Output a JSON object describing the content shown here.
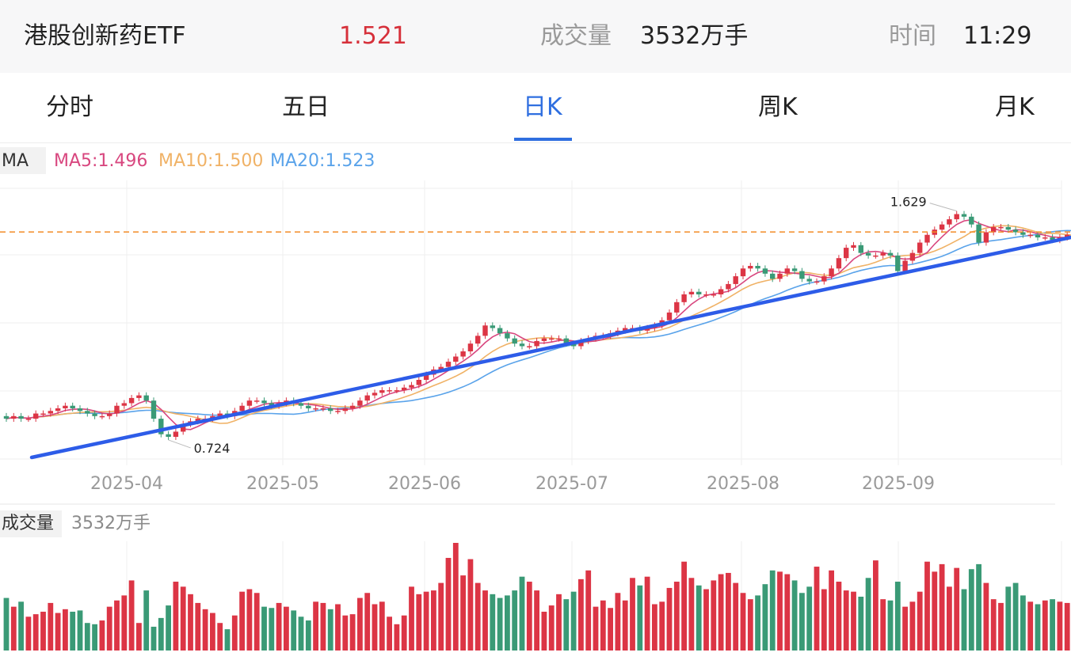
{
  "header": {
    "name": "港股创新药ETF",
    "price": "1.521",
    "volume_label": "成交量",
    "volume": "3532万手",
    "time_label": "时间",
    "time": "11:29"
  },
  "tabs": [
    {
      "label": "分时",
      "active": false
    },
    {
      "label": "五日",
      "active": false
    },
    {
      "label": "日K",
      "active": true
    },
    {
      "label": "周K",
      "active": false
    },
    {
      "label": "月K",
      "active": false
    }
  ],
  "indicators": {
    "label": "MA",
    "ma5": "MA5:1.496",
    "ma10": "MA10:1.500",
    "ma20": "MA20:1.523"
  },
  "volume_panel": {
    "label": "成交量",
    "value": "3532万手"
  },
  "colors": {
    "up": "#dc3545",
    "down": "#3a9a76",
    "ma5": "#d8477f",
    "ma10": "#f0b266",
    "ma20": "#5aa3ea",
    "trendline": "#2d5ce8",
    "price_line": "#f28c28",
    "accent": "#2f6fe0"
  },
  "chart_data": {
    "type": "candlestick",
    "x_labels": [
      "2025-04",
      "2025-05",
      "2025-06",
      "2025-07",
      "2025-08",
      "2025-09"
    ],
    "annotations": {
      "high": "1.629",
      "low": "0.724"
    },
    "current_price": 1.521,
    "ylim": [
      0.62,
      1.72
    ],
    "closes": [
      0.8,
      0.81,
      0.8,
      0.8,
      0.82,
      0.82,
      0.83,
      0.84,
      0.85,
      0.84,
      0.83,
      0.82,
      0.81,
      0.81,
      0.82,
      0.85,
      0.86,
      0.88,
      0.89,
      0.87,
      0.8,
      0.74,
      0.73,
      0.75,
      0.78,
      0.79,
      0.8,
      0.8,
      0.81,
      0.82,
      0.81,
      0.83,
      0.85,
      0.87,
      0.87,
      0.86,
      0.85,
      0.86,
      0.87,
      0.86,
      0.85,
      0.84,
      0.84,
      0.84,
      0.83,
      0.83,
      0.84,
      0.85,
      0.87,
      0.89,
      0.9,
      0.91,
      0.91,
      0.91,
      0.92,
      0.93,
      0.95,
      0.97,
      0.99,
      1.0,
      1.02,
      1.04,
      1.06,
      1.09,
      1.12,
      1.16,
      1.15,
      1.13,
      1.11,
      1.09,
      1.08,
      1.08,
      1.1,
      1.11,
      1.11,
      1.11,
      1.09,
      1.08,
      1.1,
      1.11,
      1.12,
      1.12,
      1.13,
      1.14,
      1.15,
      1.15,
      1.14,
      1.15,
      1.16,
      1.18,
      1.21,
      1.25,
      1.28,
      1.29,
      1.28,
      1.28,
      1.28,
      1.3,
      1.32,
      1.35,
      1.38,
      1.39,
      1.38,
      1.36,
      1.34,
      1.36,
      1.38,
      1.37,
      1.34,
      1.33,
      1.33,
      1.35,
      1.38,
      1.42,
      1.46,
      1.47,
      1.44,
      1.43,
      1.43,
      1.44,
      1.43,
      1.37,
      1.41,
      1.44,
      1.48,
      1.51,
      1.53,
      1.55,
      1.57,
      1.59,
      1.58,
      1.55,
      1.48,
      1.52,
      1.54,
      1.54,
      1.53,
      1.52,
      1.51,
      1.51,
      1.5,
      1.5,
      1.49,
      1.5,
      1.51,
      1.5,
      1.52
    ],
    "opens": [
      0.81,
      0.8,
      0.81,
      0.8,
      0.8,
      0.82,
      0.82,
      0.83,
      0.84,
      0.85,
      0.84,
      0.83,
      0.82,
      0.81,
      0.81,
      0.82,
      0.85,
      0.86,
      0.88,
      0.89,
      0.87,
      0.8,
      0.74,
      0.73,
      0.75,
      0.78,
      0.79,
      0.8,
      0.8,
      0.81,
      0.82,
      0.81,
      0.83,
      0.85,
      0.87,
      0.87,
      0.86,
      0.85,
      0.86,
      0.87,
      0.86,
      0.85,
      0.84,
      0.84,
      0.84,
      0.83,
      0.83,
      0.84,
      0.85,
      0.87,
      0.89,
      0.9,
      0.91,
      0.91,
      0.91,
      0.92,
      0.93,
      0.95,
      0.97,
      0.99,
      1.0,
      1.02,
      1.04,
      1.06,
      1.09,
      1.12,
      1.16,
      1.15,
      1.13,
      1.11,
      1.09,
      1.08,
      1.08,
      1.1,
      1.11,
      1.11,
      1.11,
      1.09,
      1.08,
      1.1,
      1.11,
      1.12,
      1.12,
      1.13,
      1.14,
      1.15,
      1.15,
      1.14,
      1.15,
      1.16,
      1.18,
      1.21,
      1.25,
      1.28,
      1.29,
      1.28,
      1.28,
      1.28,
      1.3,
      1.32,
      1.35,
      1.38,
      1.39,
      1.38,
      1.36,
      1.34,
      1.36,
      1.38,
      1.37,
      1.34,
      1.33,
      1.33,
      1.35,
      1.38,
      1.42,
      1.46,
      1.47,
      1.44,
      1.43,
      1.43,
      1.44,
      1.43,
      1.37,
      1.41,
      1.44,
      1.48,
      1.51,
      1.53,
      1.55,
      1.57,
      1.59,
      1.58,
      1.55,
      1.48,
      1.52,
      1.54,
      1.54,
      1.53,
      1.52,
      1.51,
      1.51,
      1.5,
      1.5,
      1.49,
      1.5,
      1.51,
      1.5
    ],
    "volumes": [
      42,
      35,
      39,
      27,
      29,
      31,
      38,
      30,
      33,
      31,
      32,
      22,
      21,
      24,
      35,
      40,
      44,
      56,
      22,
      48,
      19,
      26,
      36,
      55,
      51,
      45,
      38,
      33,
      30,
      22,
      17,
      28,
      47,
      49,
      46,
      35,
      34,
      38,
      35,
      32,
      27,
      24,
      39,
      38,
      33,
      37,
      28,
      29,
      42,
      46,
      37,
      39,
      27,
      21,
      28,
      51,
      45,
      47,
      48,
      54,
      74,
      86,
      60,
      73,
      54,
      48,
      45,
      42,
      44,
      48,
      59,
      55,
      48,
      31,
      36,
      45,
      41,
      47,
      57,
      64,
      35,
      40,
      34,
      46,
      40,
      58,
      52,
      59,
      37,
      39,
      50,
      55,
      71,
      58,
      52,
      49,
      56,
      61,
      62,
      54,
      46,
      41,
      44,
      53,
      64,
      63,
      61,
      56,
      46,
      51,
      67,
      49,
      64,
      55,
      48,
      47,
      43,
      58,
      72,
      41,
      40,
      55,
      35,
      39,
      47,
      71,
      63,
      69,
      51,
      66,
      49,
      65,
      69,
      54,
      41,
      38,
      51,
      54,
      44,
      39,
      37,
      40,
      41,
      39,
      38,
      37
    ]
  }
}
